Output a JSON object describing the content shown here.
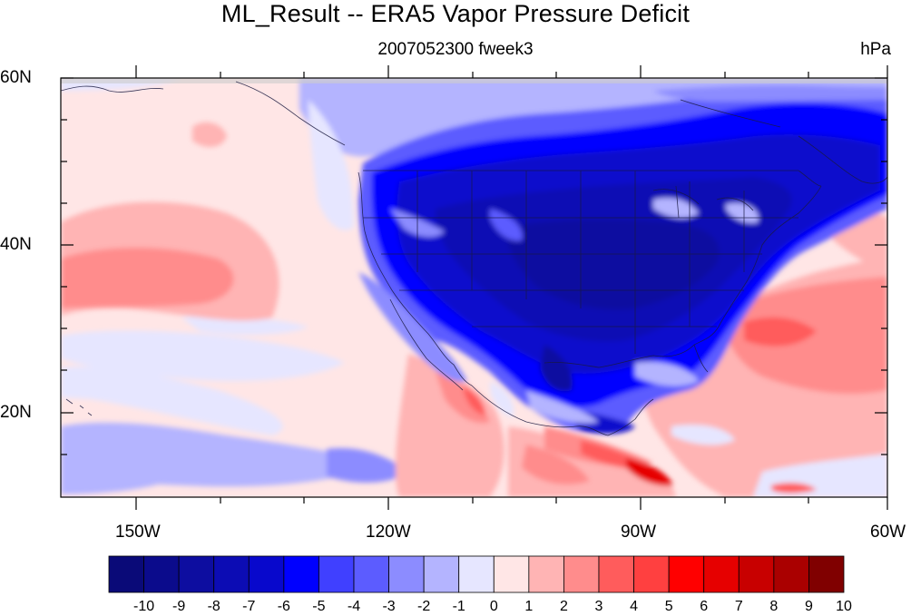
{
  "title": "ML_Result -- ERA5 Vapor Pressure Deficit",
  "subtitle": "2007052300 fweek3",
  "units": "hPa",
  "lat_labels": [
    "60N",
    "40N",
    "20N"
  ],
  "lon_labels": [
    "150W",
    "120W",
    "90W",
    "60W"
  ],
  "colorbar": {
    "labels": [
      "-10",
      "-9",
      "-8",
      "-7",
      "-6",
      "-5",
      "-4",
      "-3",
      "-2",
      "-1",
      "0",
      "1",
      "2",
      "3",
      "4",
      "5",
      "6",
      "7",
      "8",
      "9",
      "10"
    ],
    "colors": [
      "#0a0a78",
      "#0b0b8c",
      "#0d0da0",
      "#0c0cb4",
      "#0808cc",
      "#0000ff",
      "#4040ff",
      "#5c5cff",
      "#8c8cff",
      "#b4b4ff",
      "#e6e6ff",
      "#ffe6e6",
      "#ffb4b4",
      "#ff8c8c",
      "#ff5c5c",
      "#ff4040",
      "#ff0000",
      "#e60000",
      "#c80000",
      "#aa0000",
      "#800000"
    ]
  }
}
